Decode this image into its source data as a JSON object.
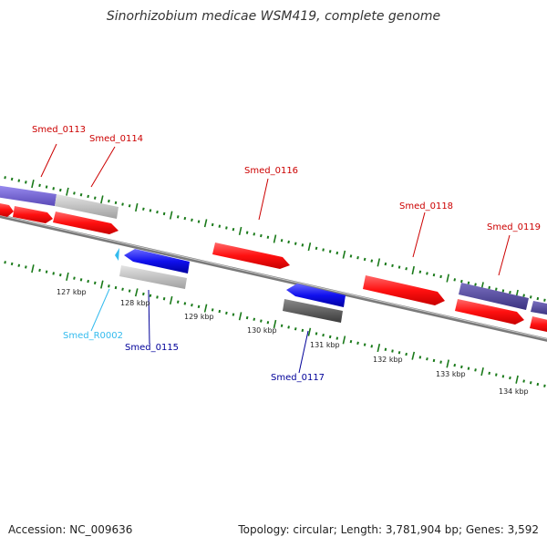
{
  "title": "Sinorhizobium medicae WSM419, complete genome",
  "footer": {
    "accession": "Accession: NC_009636",
    "summary": "Topology: circular; Length: 3,781,904 bp; Genes: 3,592"
  },
  "colors": {
    "forward_gene": "#ff1010",
    "reverse_gene": "#1a1aee",
    "purple_gene": "#6a5acd",
    "dark_purple_gene": "#504890",
    "grey_gene": "#bdbdbd",
    "dark_grey_gene": "#555555",
    "rna_gene": "#33bbee",
    "backbone": "#888888",
    "tick": "#1a7a1a",
    "label_forward": "#cc0000",
    "label_reverse": "#000099",
    "label_rna": "#33bbee"
  },
  "scale_labels": [
    "127 kbp",
    "128 kbp",
    "129 kbp",
    "130 kbp",
    "131 kbp",
    "132 kbp",
    "133 kbp",
    "134 kbp"
  ],
  "gene_labels": {
    "top": [
      "Smed_0113",
      "Smed_0114",
      "Smed_0116",
      "Smed_0118",
      "Smed_0119"
    ],
    "bottom": [
      "Smed_R0002",
      "Smed_0115",
      "Smed_0117"
    ]
  }
}
